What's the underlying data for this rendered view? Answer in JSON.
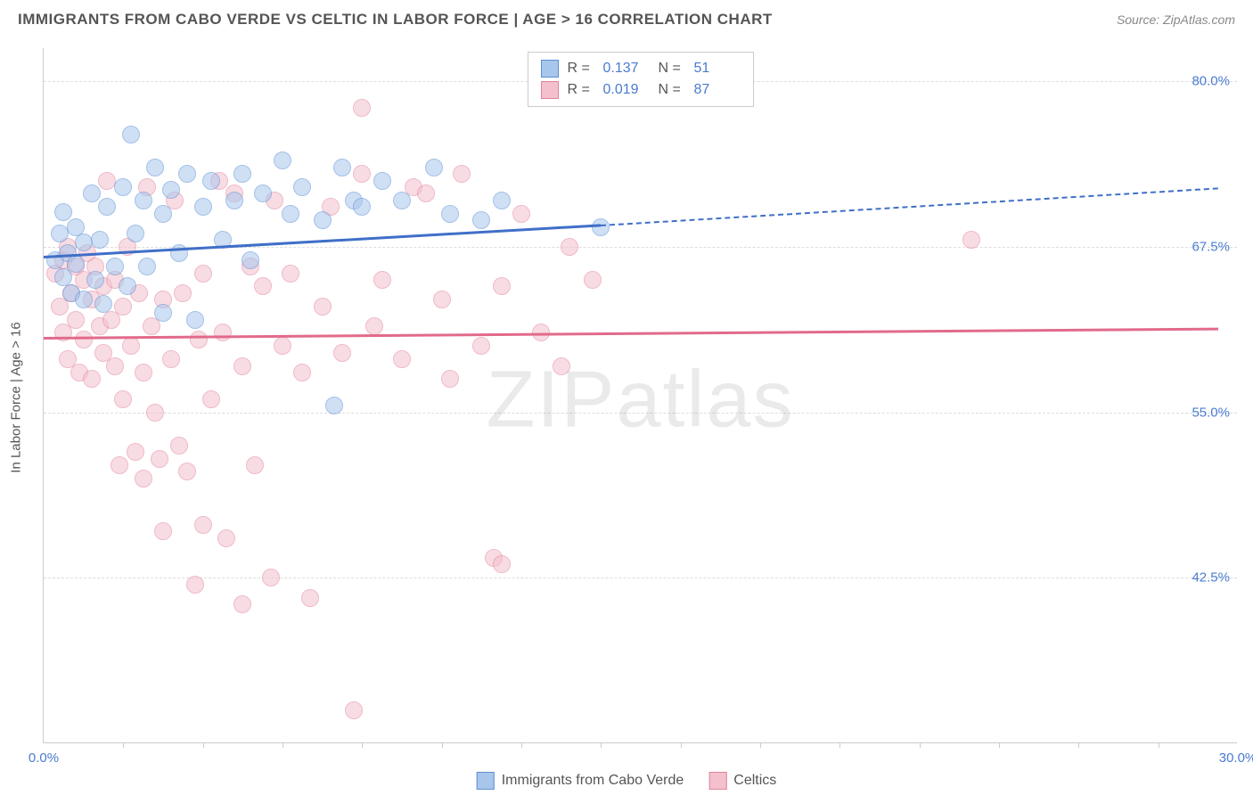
{
  "header": {
    "title": "IMMIGRANTS FROM CABO VERDE VS CELTIC IN LABOR FORCE | AGE > 16 CORRELATION CHART",
    "source": "Source: ZipAtlas.com"
  },
  "watermark": {
    "bold": "ZIP",
    "light": "atlas"
  },
  "chart": {
    "type": "scatter",
    "ylabel": "In Labor Force | Age > 16",
    "xlim": [
      0,
      30
    ],
    "ylim": [
      30,
      82.5
    ],
    "yticks": [
      {
        "v": 42.5,
        "label": "42.5%"
      },
      {
        "v": 55.0,
        "label": "55.0%"
      },
      {
        "v": 67.5,
        "label": "67.5%"
      },
      {
        "v": 80.0,
        "label": "80.0%"
      }
    ],
    "xticks_labels": [
      {
        "v": 0,
        "label": "0.0%"
      },
      {
        "v": 30,
        "label": "30.0%"
      }
    ],
    "xticks_minor": [
      2,
      4,
      6,
      8,
      10,
      12,
      14,
      16,
      18,
      20,
      22,
      24,
      26,
      28
    ],
    "background_color": "#ffffff",
    "grid_color": "#dddddd",
    "axis_color": "#cccccc",
    "marker_radius": 10,
    "marker_opacity": 0.55,
    "series": [
      {
        "id": "cabo_verde",
        "name": "Immigrants from Cabo Verde",
        "fill": "#a8c6ec",
        "stroke": "#5b8fd6",
        "line_color": "#3f6fc8",
        "R": "0.137",
        "N": "51",
        "trend": {
          "x0": 0,
          "y0": 66.8,
          "x1_solid": 14,
          "y1_solid": 69.2,
          "x1_dash": 29.5,
          "y1_dash": 72.0
        },
        "points": [
          [
            0.3,
            66.5
          ],
          [
            0.4,
            68.5
          ],
          [
            0.5,
            65.2
          ],
          [
            0.5,
            70.1
          ],
          [
            0.6,
            67.0
          ],
          [
            0.7,
            64.0
          ],
          [
            0.8,
            69.0
          ],
          [
            0.8,
            66.2
          ],
          [
            1.0,
            67.8
          ],
          [
            1.0,
            63.5
          ],
          [
            1.2,
            71.5
          ],
          [
            1.3,
            65.0
          ],
          [
            1.4,
            68.0
          ],
          [
            1.5,
            63.2
          ],
          [
            1.6,
            70.5
          ],
          [
            1.8,
            66.0
          ],
          [
            2.0,
            72.0
          ],
          [
            2.1,
            64.5
          ],
          [
            2.2,
            76.0
          ],
          [
            2.3,
            68.5
          ],
          [
            2.5,
            71.0
          ],
          [
            2.6,
            66.0
          ],
          [
            2.8,
            73.5
          ],
          [
            3.0,
            70.0
          ],
          [
            3.0,
            62.5
          ],
          [
            3.2,
            71.8
          ],
          [
            3.4,
            67.0
          ],
          [
            3.6,
            73.0
          ],
          [
            3.8,
            62.0
          ],
          [
            4.0,
            70.5
          ],
          [
            4.2,
            72.5
          ],
          [
            4.5,
            68.0
          ],
          [
            4.8,
            71.0
          ],
          [
            5.0,
            73.0
          ],
          [
            5.2,
            66.5
          ],
          [
            5.5,
            71.5
          ],
          [
            6.0,
            74.0
          ],
          [
            6.2,
            70.0
          ],
          [
            6.5,
            72.0
          ],
          [
            7.0,
            69.5
          ],
          [
            7.3,
            55.5
          ],
          [
            7.5,
            73.5
          ],
          [
            7.8,
            71.0
          ],
          [
            8.0,
            70.5
          ],
          [
            8.5,
            72.5
          ],
          [
            9.0,
            71.0
          ],
          [
            9.8,
            73.5
          ],
          [
            10.2,
            70.0
          ],
          [
            11.0,
            69.5
          ],
          [
            11.5,
            71.0
          ],
          [
            14.0,
            69.0
          ]
        ]
      },
      {
        "id": "celtics",
        "name": "Celtics",
        "fill": "#f4c0cd",
        "stroke": "#e2839b",
        "line_color": "#e26a8a",
        "R": "0.019",
        "N": "87",
        "trend": {
          "x0": 0,
          "y0": 60.7,
          "x1_solid": 29.5,
          "y1_solid": 61.4,
          "x1_dash": 29.5,
          "y1_dash": 61.4
        },
        "points": [
          [
            0.3,
            65.5
          ],
          [
            0.4,
            63.0
          ],
          [
            0.5,
            66.5
          ],
          [
            0.5,
            61.0
          ],
          [
            0.6,
            67.5
          ],
          [
            0.6,
            59.0
          ],
          [
            0.7,
            64.0
          ],
          [
            0.8,
            62.0
          ],
          [
            0.8,
            66.0
          ],
          [
            0.9,
            58.0
          ],
          [
            1.0,
            65.0
          ],
          [
            1.0,
            60.5
          ],
          [
            1.1,
            67.0
          ],
          [
            1.2,
            63.5
          ],
          [
            1.2,
            57.5
          ],
          [
            1.3,
            66.0
          ],
          [
            1.4,
            61.5
          ],
          [
            1.5,
            64.5
          ],
          [
            1.5,
            59.5
          ],
          [
            1.6,
            72.5
          ],
          [
            1.7,
            62.0
          ],
          [
            1.8,
            58.5
          ],
          [
            1.8,
            65.0
          ],
          [
            1.9,
            51.0
          ],
          [
            2.0,
            63.0
          ],
          [
            2.0,
            56.0
          ],
          [
            2.1,
            67.5
          ],
          [
            2.2,
            60.0
          ],
          [
            2.3,
            52.0
          ],
          [
            2.4,
            64.0
          ],
          [
            2.5,
            58.0
          ],
          [
            2.5,
            50.0
          ],
          [
            2.6,
            72.0
          ],
          [
            2.7,
            61.5
          ],
          [
            2.8,
            55.0
          ],
          [
            2.9,
            51.5
          ],
          [
            3.0,
            63.5
          ],
          [
            3.0,
            46.0
          ],
          [
            3.2,
            59.0
          ],
          [
            3.3,
            71.0
          ],
          [
            3.4,
            52.5
          ],
          [
            3.5,
            64.0
          ],
          [
            3.6,
            50.5
          ],
          [
            3.8,
            42.0
          ],
          [
            3.9,
            60.5
          ],
          [
            4.0,
            65.5
          ],
          [
            4.2,
            56.0
          ],
          [
            4.4,
            72.5
          ],
          [
            4.5,
            61.0
          ],
          [
            4.6,
            45.5
          ],
          [
            4.8,
            71.5
          ],
          [
            5.0,
            58.5
          ],
          [
            5.0,
            40.5
          ],
          [
            5.2,
            66.0
          ],
          [
            5.3,
            51.0
          ],
          [
            5.5,
            64.5
          ],
          [
            5.7,
            42.5
          ],
          [
            5.8,
            71.0
          ],
          [
            6.0,
            60.0
          ],
          [
            6.2,
            65.5
          ],
          [
            6.5,
            58.0
          ],
          [
            6.7,
            41.0
          ],
          [
            7.0,
            63.0
          ],
          [
            7.2,
            70.5
          ],
          [
            7.5,
            59.5
          ],
          [
            7.8,
            32.5
          ],
          [
            8.0,
            73.0
          ],
          [
            8.0,
            78.0
          ],
          [
            8.3,
            61.5
          ],
          [
            8.5,
            65.0
          ],
          [
            9.0,
            59.0
          ],
          [
            9.3,
            72.0
          ],
          [
            9.6,
            71.5
          ],
          [
            10.0,
            63.5
          ],
          [
            10.2,
            57.5
          ],
          [
            10.5,
            73.0
          ],
          [
            11.0,
            60.0
          ],
          [
            11.3,
            44.0
          ],
          [
            11.5,
            64.5
          ],
          [
            12.0,
            70.0
          ],
          [
            12.5,
            61.0
          ],
          [
            13.0,
            58.5
          ],
          [
            13.2,
            67.5
          ],
          [
            13.8,
            65.0
          ],
          [
            23.3,
            68.0
          ],
          [
            11.5,
            43.5
          ],
          [
            4.0,
            46.5
          ]
        ]
      }
    ]
  },
  "legend_top": {
    "R_label": "R  =",
    "N_label": "N  ="
  }
}
